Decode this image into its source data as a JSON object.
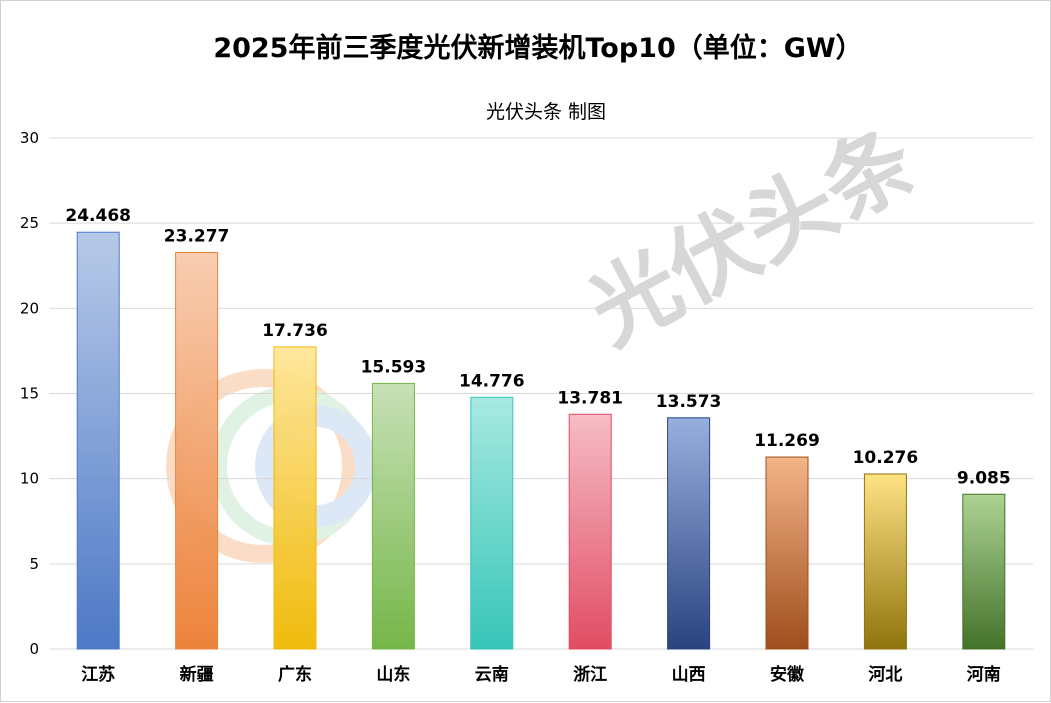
{
  "chart_data": {
    "type": "bar",
    "title": "2025年前三季度光伏新增装机Top10（单位：GW）",
    "subtitle": "光伏头条 制图",
    "categories": [
      "江苏",
      "新疆",
      "广东",
      "山东",
      "云南",
      "浙江",
      "山西",
      "安徽",
      "河北",
      "河南"
    ],
    "values": [
      24.468,
      23.277,
      17.736,
      15.593,
      14.776,
      13.781,
      13.573,
      11.269,
      10.276,
      9.085
    ],
    "value_labels": [
      "24.468",
      "23.277",
      "17.736",
      "15.593",
      "14.776",
      "13.781",
      "13.573",
      "11.269",
      "10.276",
      "9.085"
    ],
    "ylim": [
      0,
      30
    ],
    "yticks": [
      0,
      5,
      10,
      15,
      20,
      25,
      30
    ],
    "xlabel": "",
    "ylabel": "",
    "grid": true,
    "legend": "none",
    "colors": [
      [
        "#b4c7e7",
        "#4472c4"
      ],
      [
        "#f8cbad",
        "#ed7d31"
      ],
      [
        "#ffe699",
        "#f0b800"
      ],
      [
        "#c5e0b4",
        "#6fb33f"
      ],
      [
        "#a3e9e1",
        "#2cc2b4"
      ],
      [
        "#f6bac3",
        "#e0435c"
      ],
      [
        "#93abdc",
        "#1f3a7a"
      ],
      [
        "#f4b183",
        "#9a4510"
      ],
      [
        "#ffe27f",
        "#8a6d00"
      ],
      [
        "#a9d18e",
        "#3a6b20"
      ]
    ]
  },
  "watermark": "光伏头条"
}
